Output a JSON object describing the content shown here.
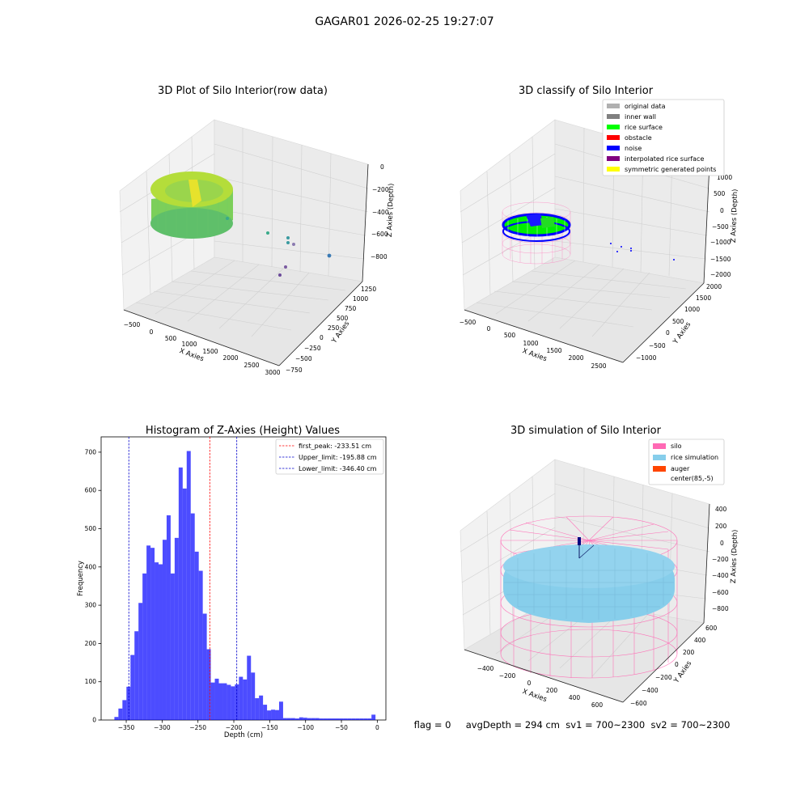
{
  "figure": {
    "suptitle": "GAGAR01 2026-02-25 19:27:07",
    "footer": "flag = 0     avgDepth = 294 cm  sv1 = 700~2300  sv2 = 700~2300"
  },
  "panels": {
    "raw": {
      "title": "3D Plot of Silo Interior(row data)",
      "xlabel": "X Axies",
      "ylabel": "Y Axies",
      "zlabel": "Z Axies (Depth)",
      "xticks": [
        "−500",
        "0",
        "500",
        "1000",
        "1500",
        "2000",
        "2500",
        "3000"
      ],
      "yticks": [
        "−750",
        "−500",
        "−250",
        "0",
        "250",
        "500",
        "750",
        "1000",
        "1250"
      ],
      "zticks": [
        "0",
        "−200",
        "−400",
        "−600",
        "−800"
      ]
    },
    "classify": {
      "title": "3D classify of Silo Interior",
      "xlabel": "X Axies",
      "ylabel": "Y Axies",
      "zlabel": "Z Axies (Depth)",
      "xticks": [
        "−500",
        "0",
        "500",
        "1000",
        "1500",
        "2000",
        "2500"
      ],
      "yticks": [
        "−1000",
        "−500",
        "0",
        "500",
        "1000",
        "1500",
        "2000"
      ],
      "zticks": [
        "1000",
        "500",
        "0",
        "−500",
        "−1000",
        "−1500",
        "−2000"
      ],
      "legend": [
        {
          "label": "original data",
          "color": "#b0b0b0"
        },
        {
          "label": "inner wall",
          "color": "#808080"
        },
        {
          "label": "rice surface",
          "color": "#00ff00"
        },
        {
          "label": "obstacle",
          "color": "#ff0000"
        },
        {
          "label": "noise",
          "color": "#0000ff"
        },
        {
          "label": "interpolated rice surface",
          "color": "#800080"
        },
        {
          "label": "symmetric generated points",
          "color": "#ffff00"
        }
      ]
    },
    "simulation": {
      "title": "3D simulation of Silo Interior",
      "xlabel": "X Axies",
      "ylabel": "Y Axies",
      "zlabel": "Z Axies (Depth)",
      "xticks": [
        "−400",
        "−200",
        "0",
        "200",
        "400",
        "600"
      ],
      "yticks": [
        "−600",
        "−400",
        "−200",
        "0",
        "200",
        "400",
        "600"
      ],
      "zticks": [
        "400",
        "200",
        "0",
        "−200",
        "−400",
        "−600",
        "−800"
      ],
      "legend": [
        {
          "label": "silo",
          "color": "#ff69b4"
        },
        {
          "label": "rice simulation",
          "color": "#87ceeb"
        },
        {
          "label": "auger",
          "color": "#ff4500"
        },
        {
          "label": "center(85,-5)",
          "color": ""
        }
      ]
    }
  },
  "chart_data": {
    "type": "bar",
    "title": "Histogram of Z-Axies (Height) Values",
    "xlabel": "Depth (cm)",
    "ylabel": "Frequency",
    "xlim": [
      -385,
      12
    ],
    "ylim": [
      0,
      740
    ],
    "xticks": [
      -350,
      -300,
      -250,
      -200,
      -150,
      -100,
      -50,
      0
    ],
    "xtick_labels": [
      "−350",
      "−300",
      "−250",
      "−200",
      "−150",
      "−100",
      "−50",
      "0"
    ],
    "yticks": [
      0,
      100,
      200,
      300,
      400,
      500,
      600,
      700
    ],
    "ytick_labels": [
      "0",
      "100",
      "200",
      "300",
      "400",
      "500",
      "600",
      "700"
    ],
    "bar_color": "#0000ff",
    "bin_edges": [
      -366.5,
      -360.9,
      -355.3,
      -349.7,
      -344.1,
      -338.5,
      -332.9,
      -327.3,
      -321.7,
      -316.1,
      -310.5,
      -304.9,
      -299.3,
      -293.7,
      -288.1,
      -282.5,
      -276.9,
      -271.3,
      -265.7,
      -260.1,
      -254.5,
      -248.9,
      -243.3,
      -237.7,
      -232.1,
      -226.5,
      -220.9,
      -215.3,
      -209.7,
      -204.1,
      -198.5,
      -192.9,
      -187.3,
      -181.7,
      -176.1,
      -170.5,
      -164.9,
      -159.3,
      -153.7,
      -148.1,
      -142.5,
      -136.9,
      -131.3,
      -125.7,
      -120.1,
      -114.5,
      -108.9,
      -103.3,
      -97.7,
      -92.1,
      -86.5,
      -80.9,
      -75.3,
      -69.7,
      -64.1,
      -58.5,
      -52.9,
      -47.3,
      -41.7,
      -36.1,
      -30.5,
      -24.9,
      -19.3,
      -13.7,
      -8.1,
      -2.5,
      3.1
    ],
    "values": [
      8,
      30,
      52,
      87,
      170,
      232,
      306,
      383,
      456,
      450,
      412,
      407,
      471,
      535,
      383,
      476,
      660,
      605,
      703,
      540,
      440,
      390,
      278,
      185,
      98,
      108,
      96,
      96,
      92,
      88,
      93,
      113,
      106,
      168,
      124,
      57,
      64,
      40,
      25,
      27,
      26,
      48,
      5,
      5,
      5,
      4,
      7,
      6,
      5,
      5,
      5,
      4,
      4,
      4,
      4,
      4,
      4,
      4,
      4,
      4,
      4,
      4,
      4,
      4,
      14,
      0
    ],
    "lines": [
      {
        "label": "first_peak: -233.51 cm",
        "x": -233.51,
        "color": "#ff0000"
      },
      {
        "label": "Upper_limit: -195.88 cm",
        "x": -195.88,
        "color": "#0000cc"
      },
      {
        "label": "Lower_limit: -346.40 cm",
        "x": -346.4,
        "color": "#0000cc"
      }
    ],
    "legend_position": "top-right"
  }
}
